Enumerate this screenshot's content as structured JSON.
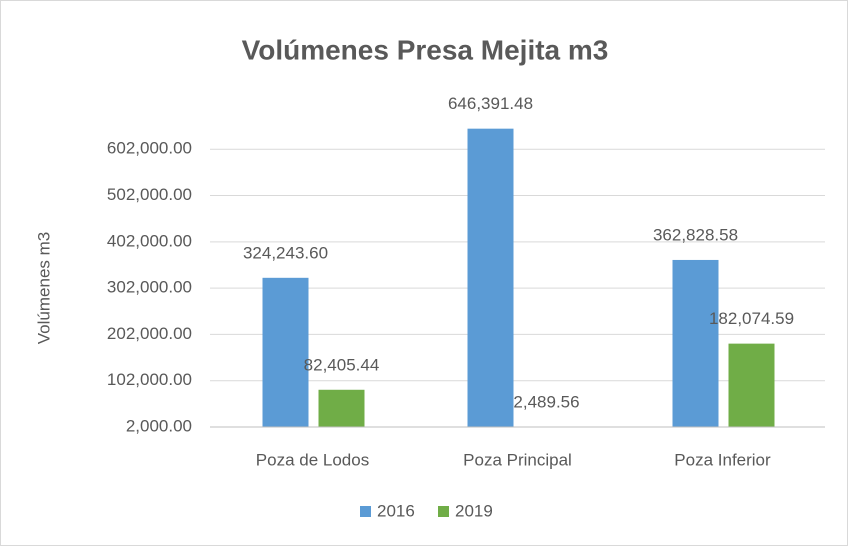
{
  "chart_data": {
    "type": "bar",
    "title": "Volúmenes Presa Mejita m3",
    "y_label": "Volúmenes m3",
    "categories": [
      "Poza de Lodos",
      "Poza Principal",
      "Poza Inferior"
    ],
    "series": [
      {
        "name": "2016",
        "color": "#5b9bd5",
        "values": [
          324243.6,
          646391.48,
          362828.58
        ],
        "value_labels": [
          "324,243.60",
          "646,391.48",
          "362,828.58"
        ]
      },
      {
        "name": "2019",
        "color": "#70ad47",
        "values": [
          82405.44,
          2489.56,
          182074.59
        ],
        "value_labels": [
          "82,405.44",
          "2,489.56",
          "182,074.59"
        ]
      }
    ],
    "ylim": [
      2000,
      650000
    ],
    "yticks": [
      {
        "value": 2000,
        "label": "2,000.00"
      },
      {
        "value": 102000,
        "label": "102,000.00"
      },
      {
        "value": 202000,
        "label": "202,000.00"
      },
      {
        "value": 302000,
        "label": "302,000.00"
      },
      {
        "value": 402000,
        "label": "402,000.00"
      },
      {
        "value": 502000,
        "label": "502,000.00"
      },
      {
        "value": 602000,
        "label": "602,000.00"
      }
    ],
    "grid": true,
    "legend": "bottom"
  }
}
